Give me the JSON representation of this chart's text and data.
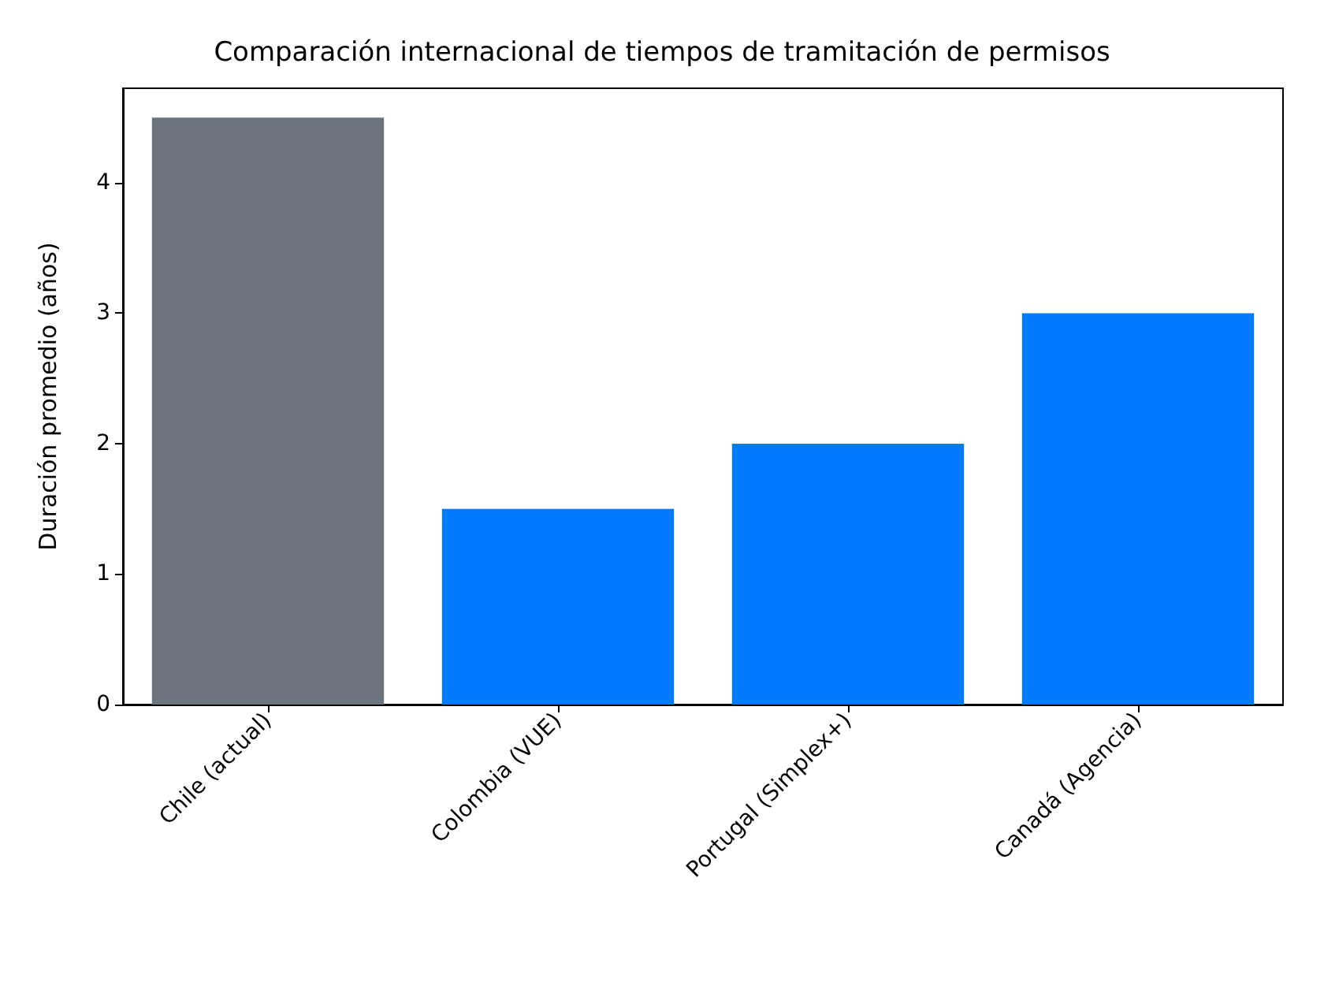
{
  "chart_data": {
    "type": "bar",
    "title": "Comparación internacional de tiempos de tramitación de permisos",
    "ylabel": "Duración promedio (años)",
    "categories": [
      "Chile (actual)",
      "Colombia (VUE)",
      "Portugal (Simplex+)",
      "Canadá (Agencia)"
    ],
    "values": [
      4.5,
      1.5,
      2,
      3
    ],
    "colors": [
      "#6c757d",
      "#007bff",
      "#007bff",
      "#007bff"
    ],
    "ylim": [
      0,
      4.725
    ],
    "yticks": [
      0,
      1,
      2,
      3,
      4
    ],
    "grid": false
  }
}
